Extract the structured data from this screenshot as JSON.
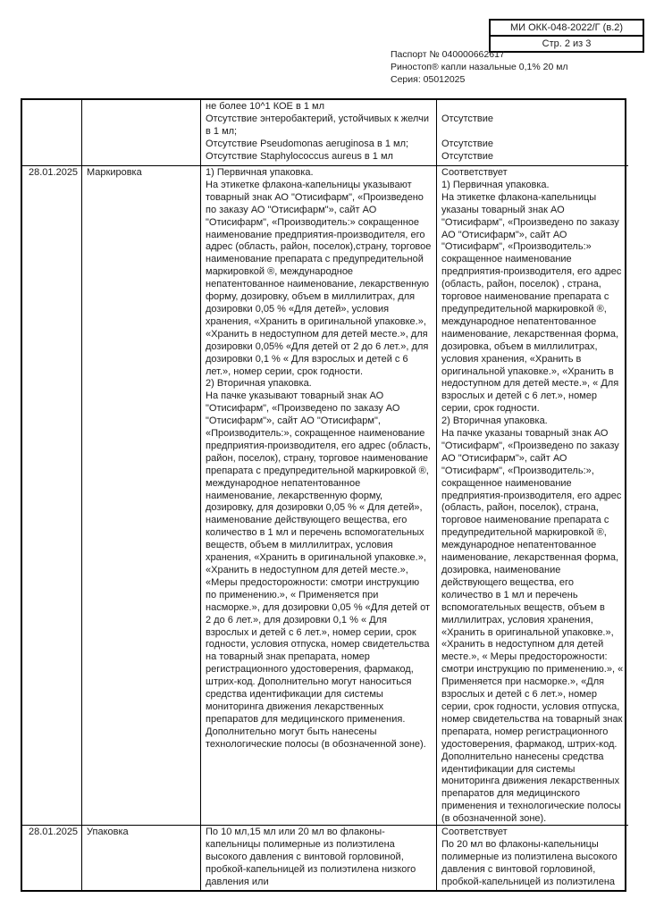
{
  "doc_box": {
    "code": "МИ ОКК-048-2022/Г (в.2)",
    "page": "Стр. 2 из 3"
  },
  "header": {
    "passport": "Паспорт № 040000662617",
    "product": "Риностоп® капли назальные 0,1% 20 мл",
    "series": "Серия: 05012025"
  },
  "table": {
    "rows": [
      {
        "date": "",
        "parameter": "",
        "requirement": "не более 10^1 КОЕ в 1 мл\nОтсутствие энтеробактерий, устойчивых к желчи\nв 1 мл;\nОтсутствие Pseudomonas aeruginosa в 1 мл;\nОтсутствие Staphylococcus aureus в 1 мл",
        "result": "\nОтсутствие\n\nОтсутствие\nОтсутствие"
      },
      {
        "date": "28.01.2025",
        "parameter": "Маркировка",
        "requirement": "1) Первичная упаковка.\nНа этикетке флакона-капельницы указывают товарный знак АО \"Отисифарм\", «Произведено по заказу АО \"Отисифарм\"», сайт АО \"Отисифарм\", «Производитель:» сокращенное наименование предприятия-производителя, его адрес (область, район, поселок),страну, торговое наименование препарата с предупредительной маркировкой ®, международное непатентованное наименование, лекарственную форму, дозировку, объем в миллилитрах, для дозировки 0,05 % «Для детей», условия хранения, «Хранить в оригинальной упаковке.», «Хранить в недоступном для детей месте.», для дозировки 0,05% «Для детей от 2 до 6 лет.», для дозировки 0,1 % « Для взрослых и детей с 6 лет.», номер серии, срок годности.\n2) Вторичная упаковка.\nНа пачке указывают товарный знак АО \"Отисифарм\", «Произведено по заказу АО \"Отисифарм\"», сайт АО \"Отисифарм\", «Производитель:», сокращенное наименование предприятия-производителя, его адрес (область, район, поселок), страну, торговое наименование препарата с предупредительной маркировкой ®, международное непатентованное наименование, лекарственную форму, дозировку, для дозировки 0,05 % « Для детей», наименование действующего вещества, его количество в 1 мл и перечень вспомогательных веществ, объем в миллилитрах, условия хранения, «Хранить в оригинальной упаковке.», «Хранить в недоступном для детей месте.», «Меры предосторожности: смотри инструкцию по применению.», « Применяется при насморке.», для дозировки 0,05 % «Для детей от 2 до 6 лет.», для дозировки 0,1 % « Для взрослых и детей с 6 лет.», номер серии, срок годности, условия отпуска, номер свидетельства на товарный знак препарата, номер регистрационного удостоверения, фармакод, штрих-код. Дополнительно могут наноситься средства идентификации для системы мониторинга движения лекарственных препаратов для медицинского применения. Дополнительно могут быть нанесены технологические полосы (в обозначенной зоне).",
        "result": "Соответствует\n1) Первичная упаковка.\nНа этикетке флакона-капельницы указаны товарный знак АО \"Отисифарм\", «Произведено по заказу АО \"Отисифарм\"», сайт АО \"Отисифарм\", «Производитель:» сокращенное наименование предприятия-производителя, его адрес (область, район, поселок) , страна, торговое наименование препарата с предупредительной маркировкой ®, международное непатентованное наименование, лекарственная форма, дозировка, объем в миллилитрах, условия хранения, «Хранить в оригинальной упаковке.», «Хранить в недоступном для детей месте.»,  « Для взрослых и детей с 6  лет.», номер серии, срок годности.\n2) Вторичная упаковка.\nНа пачке указаны товарный знак АО \"Отисифарм\", «Произведено по заказу АО \"Отисифарм\"», сайт АО \"Отисифарм\", «Производитель:», сокращенное наименование предприятия-производителя, его адрес (область, район, поселок), страна, торговое наименование препарата с предупредительной маркировкой ®, международное непатентованное наименование, лекарственная форма, дозировка, наименование действующего вещества, его количество в 1 мл и перечень вспомогательных веществ, объем в миллилитрах, условия хранения, «Хранить в оригинальной упаковке.», «Хранить в недоступном для детей месте.», « Меры предосторожности: смотри инструкцию по применению.», « Применяется при насморке.», «Для взрослых и детей  с 6 лет.», номер серии, срок годности, условия отпуска, номер свидетельства на товарный знак препарата, номер регистрационного удостоверения, фармакод, штрих-код.\nДополнительно нанесены средства идентификации для системы мониторинга движения лекарственных препаратов для медицинского применения и технологические полосы (в обозначенной зоне)."
      },
      {
        "date": "28.01.2025",
        "parameter": "Упаковка",
        "requirement": "По 10 мл,15 мл или 20 мл во флаконы-капельницы полимерные из полиэтилена высокого давления с винтовой горловиной, пробкой-капельницей из полиэтилена низкого давления или",
        "result": "Соответствует\nПо 20 мл во флаконы-капельницы полимерные из полиэтилена высокого давления с винтовой горловиной, пробкой-капельницей из полиэтилена"
      }
    ]
  }
}
